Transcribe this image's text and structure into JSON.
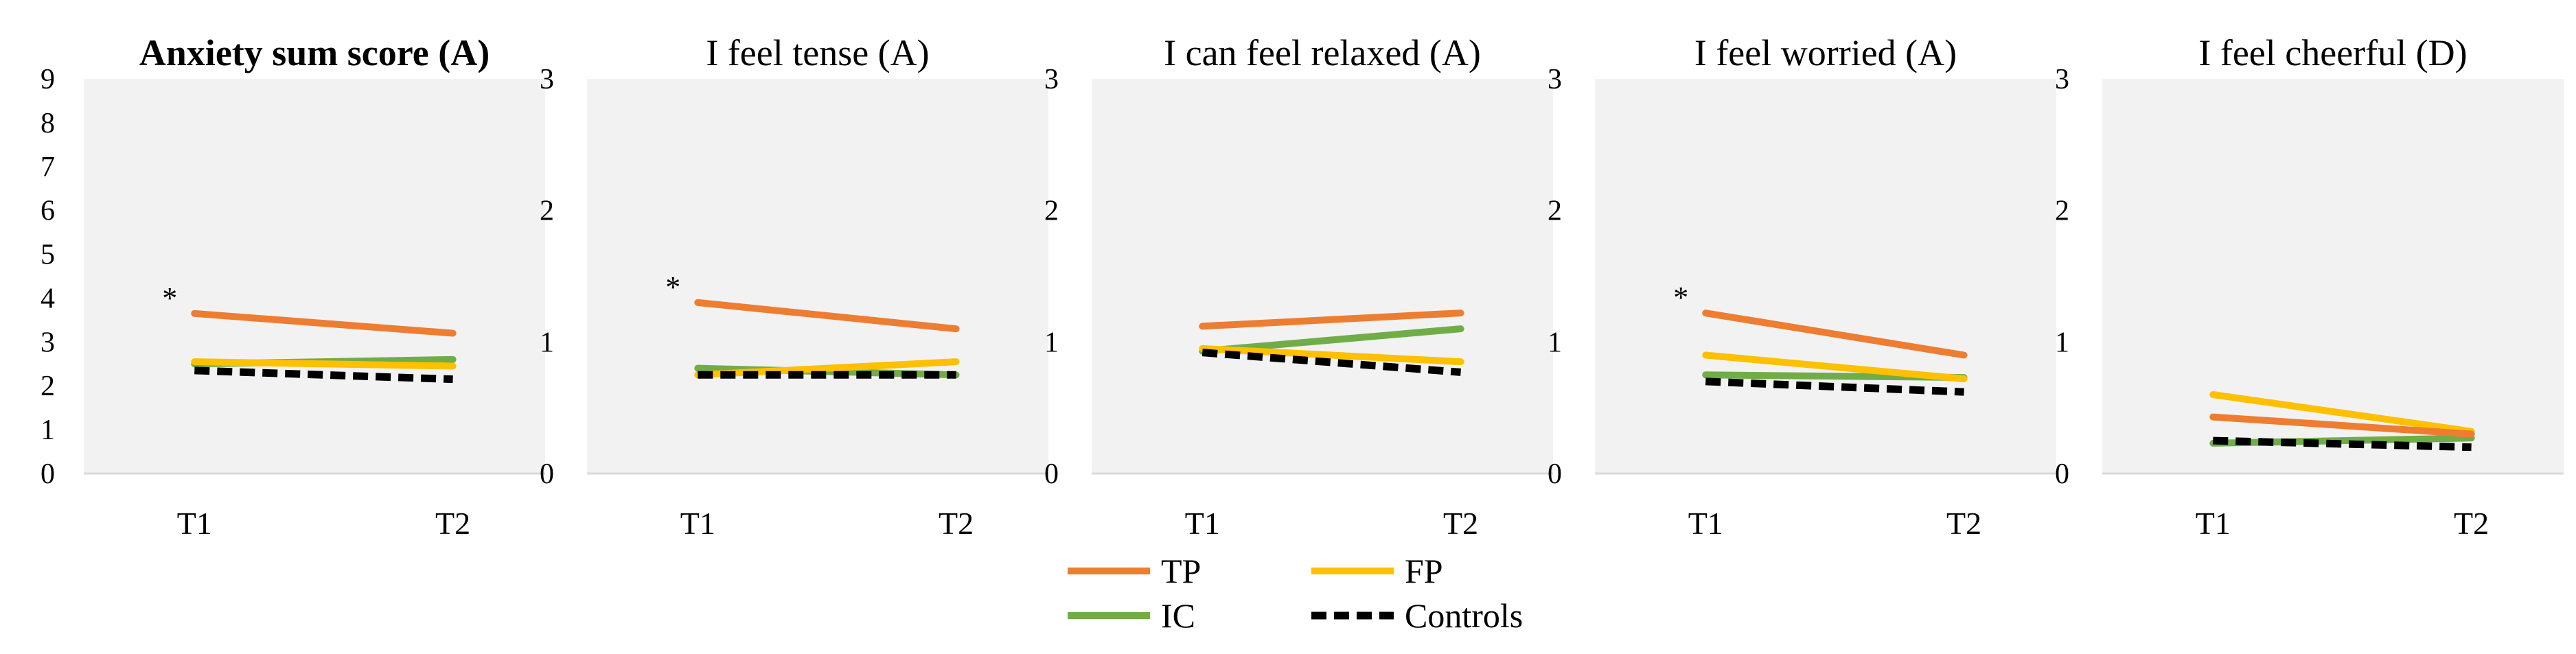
{
  "colors": {
    "TP": "#ED7D31",
    "FP": "#FFC000",
    "IC": "#70AD47",
    "Controls": "#000000",
    "plot_bg": "#F2F2F2"
  },
  "legend": {
    "placement": "bottom-center",
    "items": [
      {
        "key": "TP",
        "label": "TP",
        "dashed": false
      },
      {
        "key": "FP",
        "label": "FP",
        "dashed": false
      },
      {
        "key": "IC",
        "label": "IC",
        "dashed": false
      },
      {
        "key": "Controls",
        "label": "Controls",
        "dashed": true
      }
    ]
  },
  "chart_data": [
    {
      "type": "line",
      "title": "Anxiety sum score (A)",
      "title_bold": true,
      "categories": [
        "T1",
        "T2"
      ],
      "ylim": [
        0,
        9
      ],
      "yticks": [
        "0",
        "1",
        "2",
        "3",
        "4",
        "5",
        "6",
        "7",
        "8",
        "9"
      ],
      "grid": false,
      "annotations": [
        {
          "text": "*",
          "category": "T1",
          "series": "TP"
        }
      ],
      "series": [
        {
          "name": "TP",
          "values": [
            3.65,
            3.2
          ]
        },
        {
          "name": "FP",
          "values": [
            2.55,
            2.45
          ]
        },
        {
          "name": "IC",
          "values": [
            2.5,
            2.6
          ]
        },
        {
          "name": "Controls",
          "values": [
            2.35,
            2.15
          ]
        }
      ]
    },
    {
      "type": "line",
      "title": "I feel tense (A)",
      "title_bold": false,
      "categories": [
        "T1",
        "T2"
      ],
      "ylim": [
        0,
        3
      ],
      "yticks": [
        "0",
        "1",
        "2",
        "3"
      ],
      "grid": false,
      "annotations": [
        {
          "text": "*",
          "category": "T1",
          "series": "TP"
        }
      ],
      "series": [
        {
          "name": "TP",
          "values": [
            1.3,
            1.1
          ]
        },
        {
          "name": "FP",
          "values": [
            0.75,
            0.85
          ]
        },
        {
          "name": "IC",
          "values": [
            0.8,
            0.75
          ]
        },
        {
          "name": "Controls",
          "values": [
            0.75,
            0.75
          ]
        }
      ]
    },
    {
      "type": "line",
      "title": "I can feel relaxed (A)",
      "title_bold": false,
      "categories": [
        "T1",
        "T2"
      ],
      "ylim": [
        0,
        3
      ],
      "yticks": [
        "0",
        "1",
        "2",
        "3"
      ],
      "grid": false,
      "annotations": [],
      "series": [
        {
          "name": "TP",
          "values": [
            1.12,
            1.22
          ]
        },
        {
          "name": "FP",
          "values": [
            0.95,
            0.85
          ]
        },
        {
          "name": "IC",
          "values": [
            0.93,
            1.1
          ]
        },
        {
          "name": "Controls",
          "values": [
            0.92,
            0.77
          ]
        }
      ]
    },
    {
      "type": "line",
      "title": "I feel worried (A)",
      "title_bold": false,
      "categories": [
        "T1",
        "T2"
      ],
      "ylim": [
        0,
        3
      ],
      "yticks": [
        "0",
        "1",
        "2",
        "3"
      ],
      "grid": false,
      "annotations": [
        {
          "text": "*",
          "category": "T1",
          "series": "TP"
        }
      ],
      "series": [
        {
          "name": "TP",
          "values": [
            1.22,
            0.9
          ]
        },
        {
          "name": "FP",
          "values": [
            0.9,
            0.72
          ]
        },
        {
          "name": "IC",
          "values": [
            0.75,
            0.73
          ]
        },
        {
          "name": "Controls",
          "values": [
            0.7,
            0.62
          ]
        }
      ]
    },
    {
      "type": "line",
      "title": "I feel cheerful (D)",
      "title_bold": false,
      "categories": [
        "T1",
        "T2"
      ],
      "ylim": [
        0,
        3
      ],
      "yticks": [
        "0",
        "1",
        "2",
        "3"
      ],
      "grid": false,
      "annotations": [],
      "series": [
        {
          "name": "TP",
          "values": [
            0.43,
            0.3
          ]
        },
        {
          "name": "FP",
          "values": [
            0.6,
            0.32
          ]
        },
        {
          "name": "IC",
          "values": [
            0.23,
            0.27
          ]
        },
        {
          "name": "Controls",
          "values": [
            0.25,
            0.2
          ]
        }
      ]
    }
  ]
}
